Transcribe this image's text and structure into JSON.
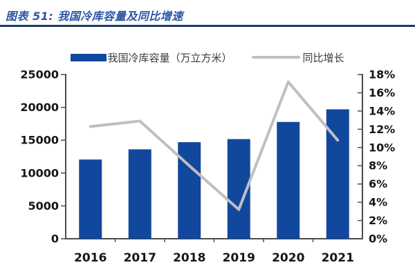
{
  "header": {
    "title": "图表 51:  我国冷库容量及同比增速"
  },
  "legend": {
    "items": [
      {
        "label": "我国冷库容量（万立方米）",
        "swatch": "bar-swatch",
        "color": "#11489e"
      },
      {
        "label": "同比增长",
        "swatch": "line-swatch",
        "color": "#bfbfbf"
      }
    ]
  },
  "chart_data": {
    "type": "bar",
    "categories": [
      "2016",
      "2017",
      "2018",
      "2019",
      "2020",
      "2021"
    ],
    "series": [
      {
        "name": "我国冷库容量（万立方米）",
        "type": "bar",
        "axis": "left",
        "color": "#11489e",
        "values": [
          12060,
          13610,
          14700,
          15170,
          17780,
          19700
        ]
      },
      {
        "name": "同比增长",
        "type": "line",
        "axis": "right",
        "color": "#bfbfbf",
        "values": [
          12.3,
          12.9,
          8.0,
          3.2,
          17.2,
          10.8
        ]
      }
    ],
    "left_axis": {
      "min": 0,
      "max": 25000,
      "step": 5000,
      "tick_labels": [
        "0",
        "5000",
        "10000",
        "15000",
        "20000",
        "25000"
      ]
    },
    "right_axis": {
      "min": 0,
      "max": 18,
      "step": 2,
      "tick_labels": [
        "0%",
        "2%",
        "4%",
        "6%",
        "8%",
        "10%",
        "12%",
        "14%",
        "16%",
        "18%"
      ]
    },
    "grid": false,
    "legend_position": "top",
    "title": "我国冷库容量及同比增速",
    "xlabel": "",
    "ylabel": ""
  },
  "style": {
    "axis_color": "#4a4a4a",
    "tick_label_color": "#15151d",
    "year_label_color": "#15151d",
    "title_color": "#2b55a3",
    "rule_color": "#1f3864",
    "line_width": 4
  }
}
